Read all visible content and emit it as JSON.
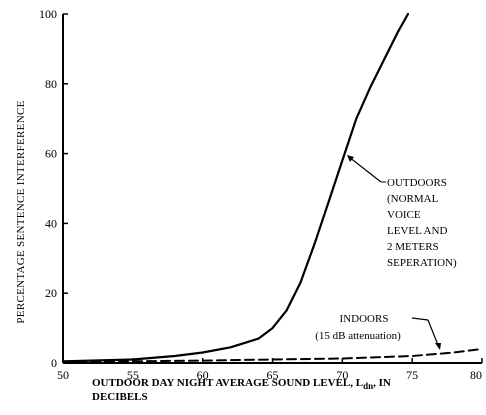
{
  "chart_data": {
    "type": "line",
    "xlabel_main": "OUTDOOR DAY NIGHT AVERAGE SOUND LEVEL, L",
    "xlabel_sub": "dn",
    "xlabel_suffix": ", IN",
    "xlabel_line2": "DECIBELS",
    "ylabel": "PERCENTAGE SENTENCE INTERFERENCE",
    "xlim": [
      50,
      80
    ],
    "ylim": [
      0,
      100
    ],
    "xticks": [
      50,
      55,
      60,
      65,
      70,
      75,
      80
    ],
    "yticks": [
      0,
      20,
      40,
      60,
      80,
      100
    ],
    "grid": false,
    "series": [
      {
        "name": "OUTDOORS",
        "style": "solid",
        "x": [
          50,
          55,
          58,
          60,
          62,
          64,
          65,
          66,
          67,
          68,
          69,
          70,
          71,
          72,
          73,
          74,
          74.7
        ],
        "y": [
          0.5,
          1,
          2,
          3,
          4.5,
          7,
          10,
          15,
          23,
          34,
          46,
          58,
          70,
          79,
          87,
          95,
          100
        ]
      },
      {
        "name": "INDOORS",
        "style": "dashed",
        "x": [
          50,
          55,
          60,
          65,
          70,
          75,
          78,
          80
        ],
        "y": [
          0.3,
          0.5,
          0.7,
          1,
          1.3,
          2,
          3,
          4
        ]
      }
    ],
    "annotations": {
      "outdoors": [
        "OUTDOORS",
        "(NORMAL",
        "VOICE",
        "LEVEL AND",
        "2 METERS",
        "SEPERATION)"
      ],
      "indoors": [
        "INDOORS",
        "(15 dB attenuation)"
      ]
    }
  }
}
